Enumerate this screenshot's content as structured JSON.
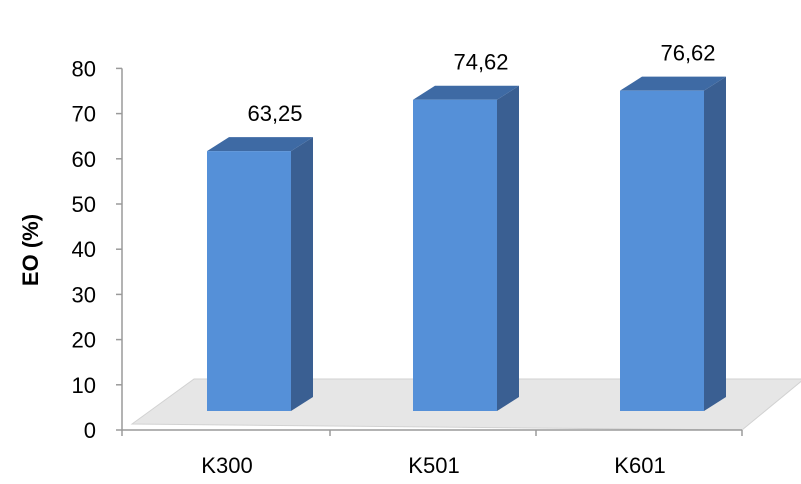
{
  "chart_data": {
    "type": "bar",
    "categories": [
      "K300",
      "K501",
      "K601"
    ],
    "values": [
      63.25,
      74.62,
      76.62
    ],
    "data_labels": [
      "63,25",
      "74,62",
      "76,62"
    ],
    "ylabel": "EO (%)",
    "xlabel": "",
    "ylim": [
      0,
      80
    ],
    "yticks": [
      "0",
      "10",
      "20",
      "30",
      "40",
      "50",
      "60",
      "70",
      "80"
    ],
    "grid": false,
    "legend": "none",
    "style": "3d-column",
    "colors": {
      "bar_front": "#5590d8",
      "bar_side": "#3a5f92",
      "bar_top": "#3e6aa4",
      "floor": "#e6e6e6",
      "axis": "#9a9a9a"
    }
  }
}
